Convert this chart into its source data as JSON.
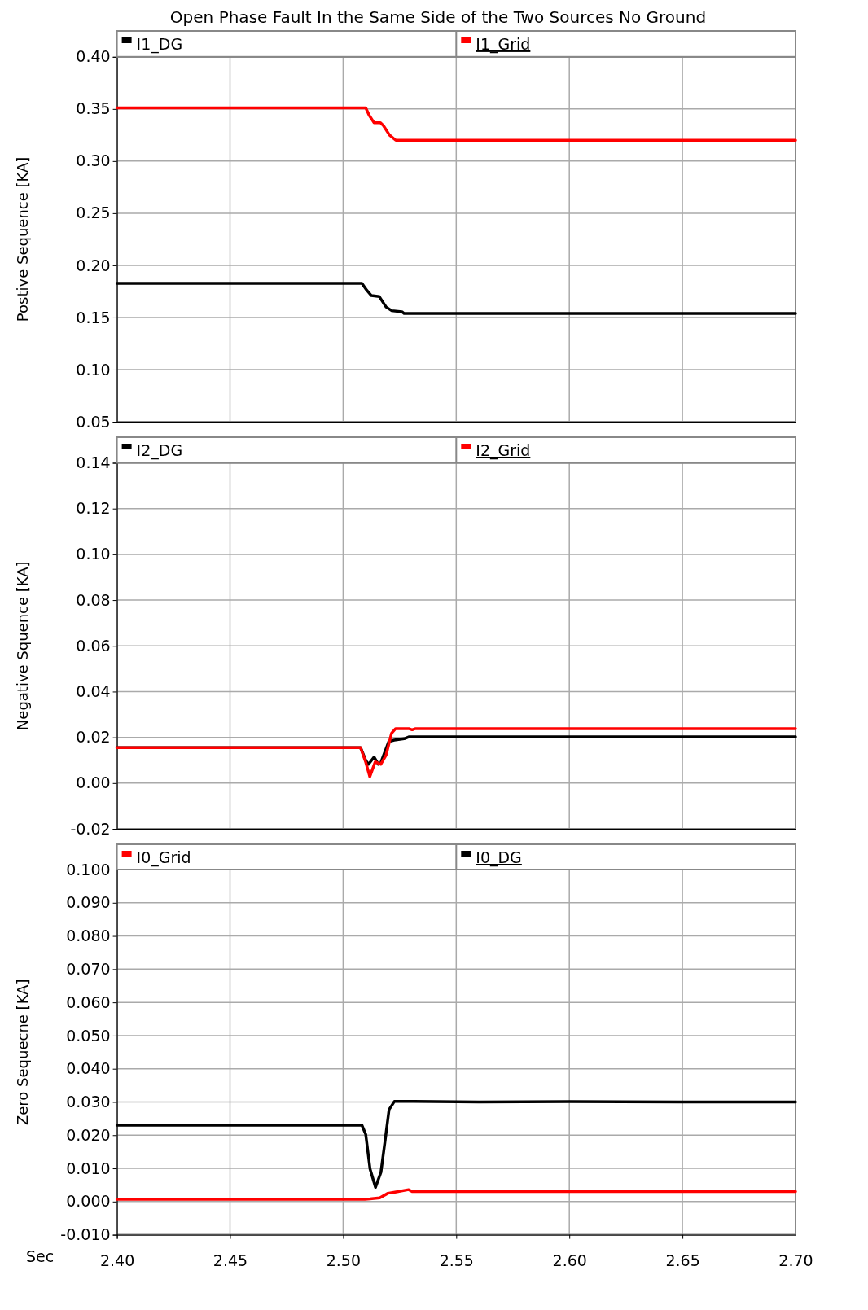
{
  "chart_data": [
    {
      "type": "line",
      "title": "Open Phase Fault In the Same Side of the Two Sources No Ground",
      "ylabel": "Postive Sequence [KA]",
      "legend": "top",
      "grid": true,
      "tick_labels": "y",
      "xlim": [
        2.4,
        2.7
      ],
      "xticks": [
        2.4,
        2.45,
        2.5,
        2.55,
        2.6,
        2.65,
        2.7
      ],
      "ylim": [
        0.05,
        0.4
      ],
      "yticks": [
        {
          "value": 0.05,
          "label": "0.05"
        },
        {
          "value": 0.1,
          "label": "0.10"
        },
        {
          "value": 0.15,
          "label": "0.15"
        },
        {
          "value": 0.2,
          "label": "0.20"
        },
        {
          "value": 0.25,
          "label": "0.25"
        },
        {
          "value": 0.3,
          "label": "0.30"
        },
        {
          "value": 0.35,
          "label": "0.35"
        },
        {
          "value": 0.4,
          "label": "0.40"
        }
      ],
      "series": [
        {
          "name": "I1_DG",
          "color": "#000000",
          "x": [
            2.4,
            2.5083,
            2.5105,
            2.5125,
            2.516,
            2.519,
            2.5215,
            2.526,
            2.527,
            2.7
          ],
          "values": [
            0.1828,
            0.1828,
            0.176,
            0.171,
            0.17,
            0.16,
            0.1565,
            0.1555,
            0.1538,
            0.1538
          ]
        },
        {
          "name": "I1_Grid",
          "color": "#ff0000",
          "x": [
            2.4,
            2.51,
            2.5115,
            2.5137,
            2.5165,
            2.5178,
            2.5205,
            2.5233,
            2.7
          ],
          "values": [
            0.351,
            0.351,
            0.344,
            0.3367,
            0.3367,
            0.334,
            0.325,
            0.32,
            0.32
          ]
        }
      ]
    },
    {
      "type": "line",
      "ylabel": "Negative Squence [KA]",
      "legend": "top",
      "grid": true,
      "tick_labels": "y",
      "xlim": [
        2.4,
        2.7
      ],
      "xticks": [
        2.4,
        2.45,
        2.5,
        2.55,
        2.6,
        2.65,
        2.7
      ],
      "ylim": [
        -0.02,
        0.14
      ],
      "yticks": [
        -0.02,
        {
          "value": 0,
          "label": "0.00"
        },
        0.02,
        0.04,
        0.06,
        0.08,
        {
          "value": 0.1,
          "label": "0.10"
        },
        0.12,
        0.14
      ],
      "series": [
        {
          "name": "I2_DG",
          "color": "#000000",
          "x": [
            2.4,
            2.5077,
            2.51,
            2.5112,
            2.5137,
            2.5156,
            2.5166,
            2.5202,
            2.5226,
            2.527,
            2.529,
            2.7
          ],
          "values": [
            0.0155,
            0.0155,
            0.0099,
            0.0082,
            0.0114,
            0.0082,
            0.0088,
            0.0182,
            0.0188,
            0.0194,
            0.0202,
            0.0202
          ]
        },
        {
          "name": "I2_Grid",
          "color": "#ff0000",
          "x": [
            2.4,
            2.5077,
            2.51,
            2.5118,
            2.5142,
            2.5166,
            2.519,
            2.5214,
            2.5232,
            2.529,
            2.5305,
            2.532,
            2.7
          ],
          "values": [
            0.0155,
            0.0155,
            0.0091,
            0.0028,
            0.0093,
            0.0082,
            0.0123,
            0.0218,
            0.0238,
            0.0238,
            0.0233,
            0.0238,
            0.0238
          ]
        }
      ]
    },
    {
      "type": "line",
      "ylabel": "Zero Sequecne [KA]",
      "xlabel": "Sec",
      "legend": "top",
      "grid": true,
      "xlim": [
        2.4,
        2.7
      ],
      "xticks": [
        {
          "value": 2.4,
          "label": "2.40"
        },
        2.45,
        {
          "value": 2.5,
          "label": "2.50"
        },
        2.55,
        {
          "value": 2.6,
          "label": "2.60"
        },
        2.65,
        {
          "value": 2.7,
          "label": "2.70"
        }
      ],
      "ylim": [
        -0.01,
        0.1
      ],
      "yticks": [
        {
          "value": -0.01,
          "label": "-0.010"
        },
        {
          "value": 0,
          "label": "0.000"
        },
        {
          "value": 0.01,
          "label": "0.010"
        },
        {
          "value": 0.02,
          "label": "0.020"
        },
        {
          "value": 0.03,
          "label": "0.030"
        },
        {
          "value": 0.04,
          "label": "0.040"
        },
        {
          "value": 0.05,
          "label": "0.050"
        },
        {
          "value": 0.06,
          "label": "0.060"
        },
        {
          "value": 0.07,
          "label": "0.070"
        },
        {
          "value": 0.08,
          "label": "0.080"
        },
        {
          "value": 0.09,
          "label": "0.090"
        },
        {
          "value": 0.1,
          "label": "0.100"
        }
      ],
      "series": [
        {
          "name": "I0_Grid",
          "color": "#ff0000",
          "x": [
            2.4,
            2.5096,
            2.5119,
            2.5162,
            2.5198,
            2.5234,
            2.529,
            2.5305,
            2.7
          ],
          "values": [
            0.0007,
            0.0007,
            0.0008,
            0.0011,
            0.0025,
            0.0029,
            0.0036,
            0.003,
            0.003
          ]
        },
        {
          "name": "I0_DG",
          "color": "#000000",
          "x": [
            2.4,
            2.5083,
            2.51,
            2.5119,
            2.5143,
            2.5167,
            2.5185,
            2.5203,
            2.5227,
            2.56,
            2.6,
            2.65,
            2.7
          ],
          "values": [
            0.023,
            0.023,
            0.0202,
            0.0098,
            0.0043,
            0.0088,
            0.0181,
            0.0277,
            0.0302,
            0.03,
            0.0301,
            0.03,
            0.03
          ]
        }
      ]
    }
  ]
}
